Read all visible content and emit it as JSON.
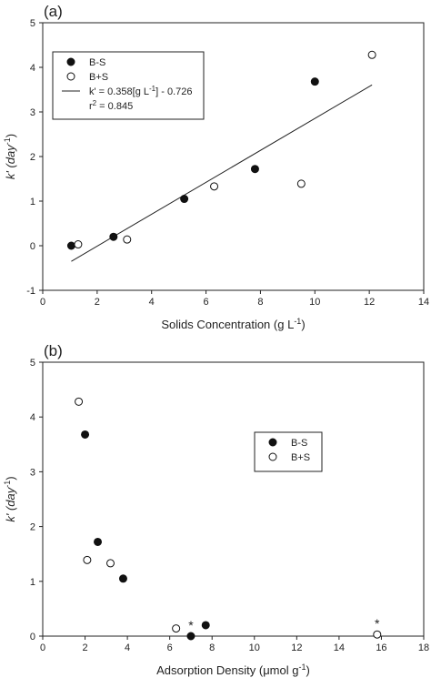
{
  "chart_data": [
    {
      "type": "scatter",
      "panel_label": "(a)",
      "xlabel": "Solids Concentration (g L",
      "xlabel_sup": "-1",
      "xlabel_end": ")",
      "ylabel": "k' (day",
      "ylabel_sup": "-1",
      "ylabel_end": ")",
      "xlim": [
        0,
        14
      ],
      "ylim": [
        -1,
        5
      ],
      "xticks": [
        0,
        2,
        4,
        6,
        8,
        10,
        12,
        14
      ],
      "yticks": [
        -1,
        0,
        1,
        2,
        3,
        4,
        5
      ],
      "legend_position": "top-left",
      "series": [
        {
          "name": "B-S",
          "marker": "filled-circle",
          "x": [
            1.05,
            2.6,
            5.2,
            7.8,
            10.0
          ],
          "y": [
            0.0,
            0.2,
            1.05,
            1.72,
            3.68
          ]
        },
        {
          "name": "B+S",
          "marker": "open-circle",
          "x": [
            1.3,
            3.1,
            6.3,
            9.5,
            12.1
          ],
          "y": [
            0.03,
            0.14,
            1.33,
            1.39,
            4.28
          ]
        }
      ],
      "fit": {
        "label": "k' = 0.358[g L",
        "label_sup": "-1",
        "label_end": "] - 0.726",
        "r2_label": "r",
        "r2_sup": "2",
        "r2_end": " = 0.845",
        "slope": 0.358,
        "intercept": -0.726,
        "x_range": [
          1.05,
          12.1
        ]
      }
    },
    {
      "type": "scatter",
      "panel_label": "(b)",
      "xlabel": "Adsorption Density (μmol g",
      "xlabel_sup": "-1",
      "xlabel_end": ")",
      "ylabel": "k' (day",
      "ylabel_sup": "-1",
      "ylabel_end": ")",
      "xlim": [
        0,
        18
      ],
      "ylim": [
        0,
        5
      ],
      "xticks": [
        0,
        2,
        4,
        6,
        8,
        10,
        12,
        14,
        16,
        18
      ],
      "yticks": [
        0,
        1,
        2,
        3,
        4,
        5
      ],
      "legend_position": "right",
      "series": [
        {
          "name": "B-S",
          "marker": "filled-circle",
          "x": [
            2.0,
            2.6,
            3.8,
            7.0,
            7.7
          ],
          "y": [
            3.68,
            1.72,
            1.05,
            0.0,
            0.2
          ]
        },
        {
          "name": "B+S",
          "marker": "open-circle",
          "x": [
            1.7,
            2.1,
            3.2,
            6.3,
            15.8
          ],
          "y": [
            4.28,
            1.39,
            1.33,
            0.14,
            0.03
          ]
        }
      ],
      "annotations": [
        {
          "text": "*",
          "x": 7.0,
          "y": 0.0
        },
        {
          "text": "*",
          "x": 15.8,
          "y": 0.03
        }
      ]
    }
  ]
}
